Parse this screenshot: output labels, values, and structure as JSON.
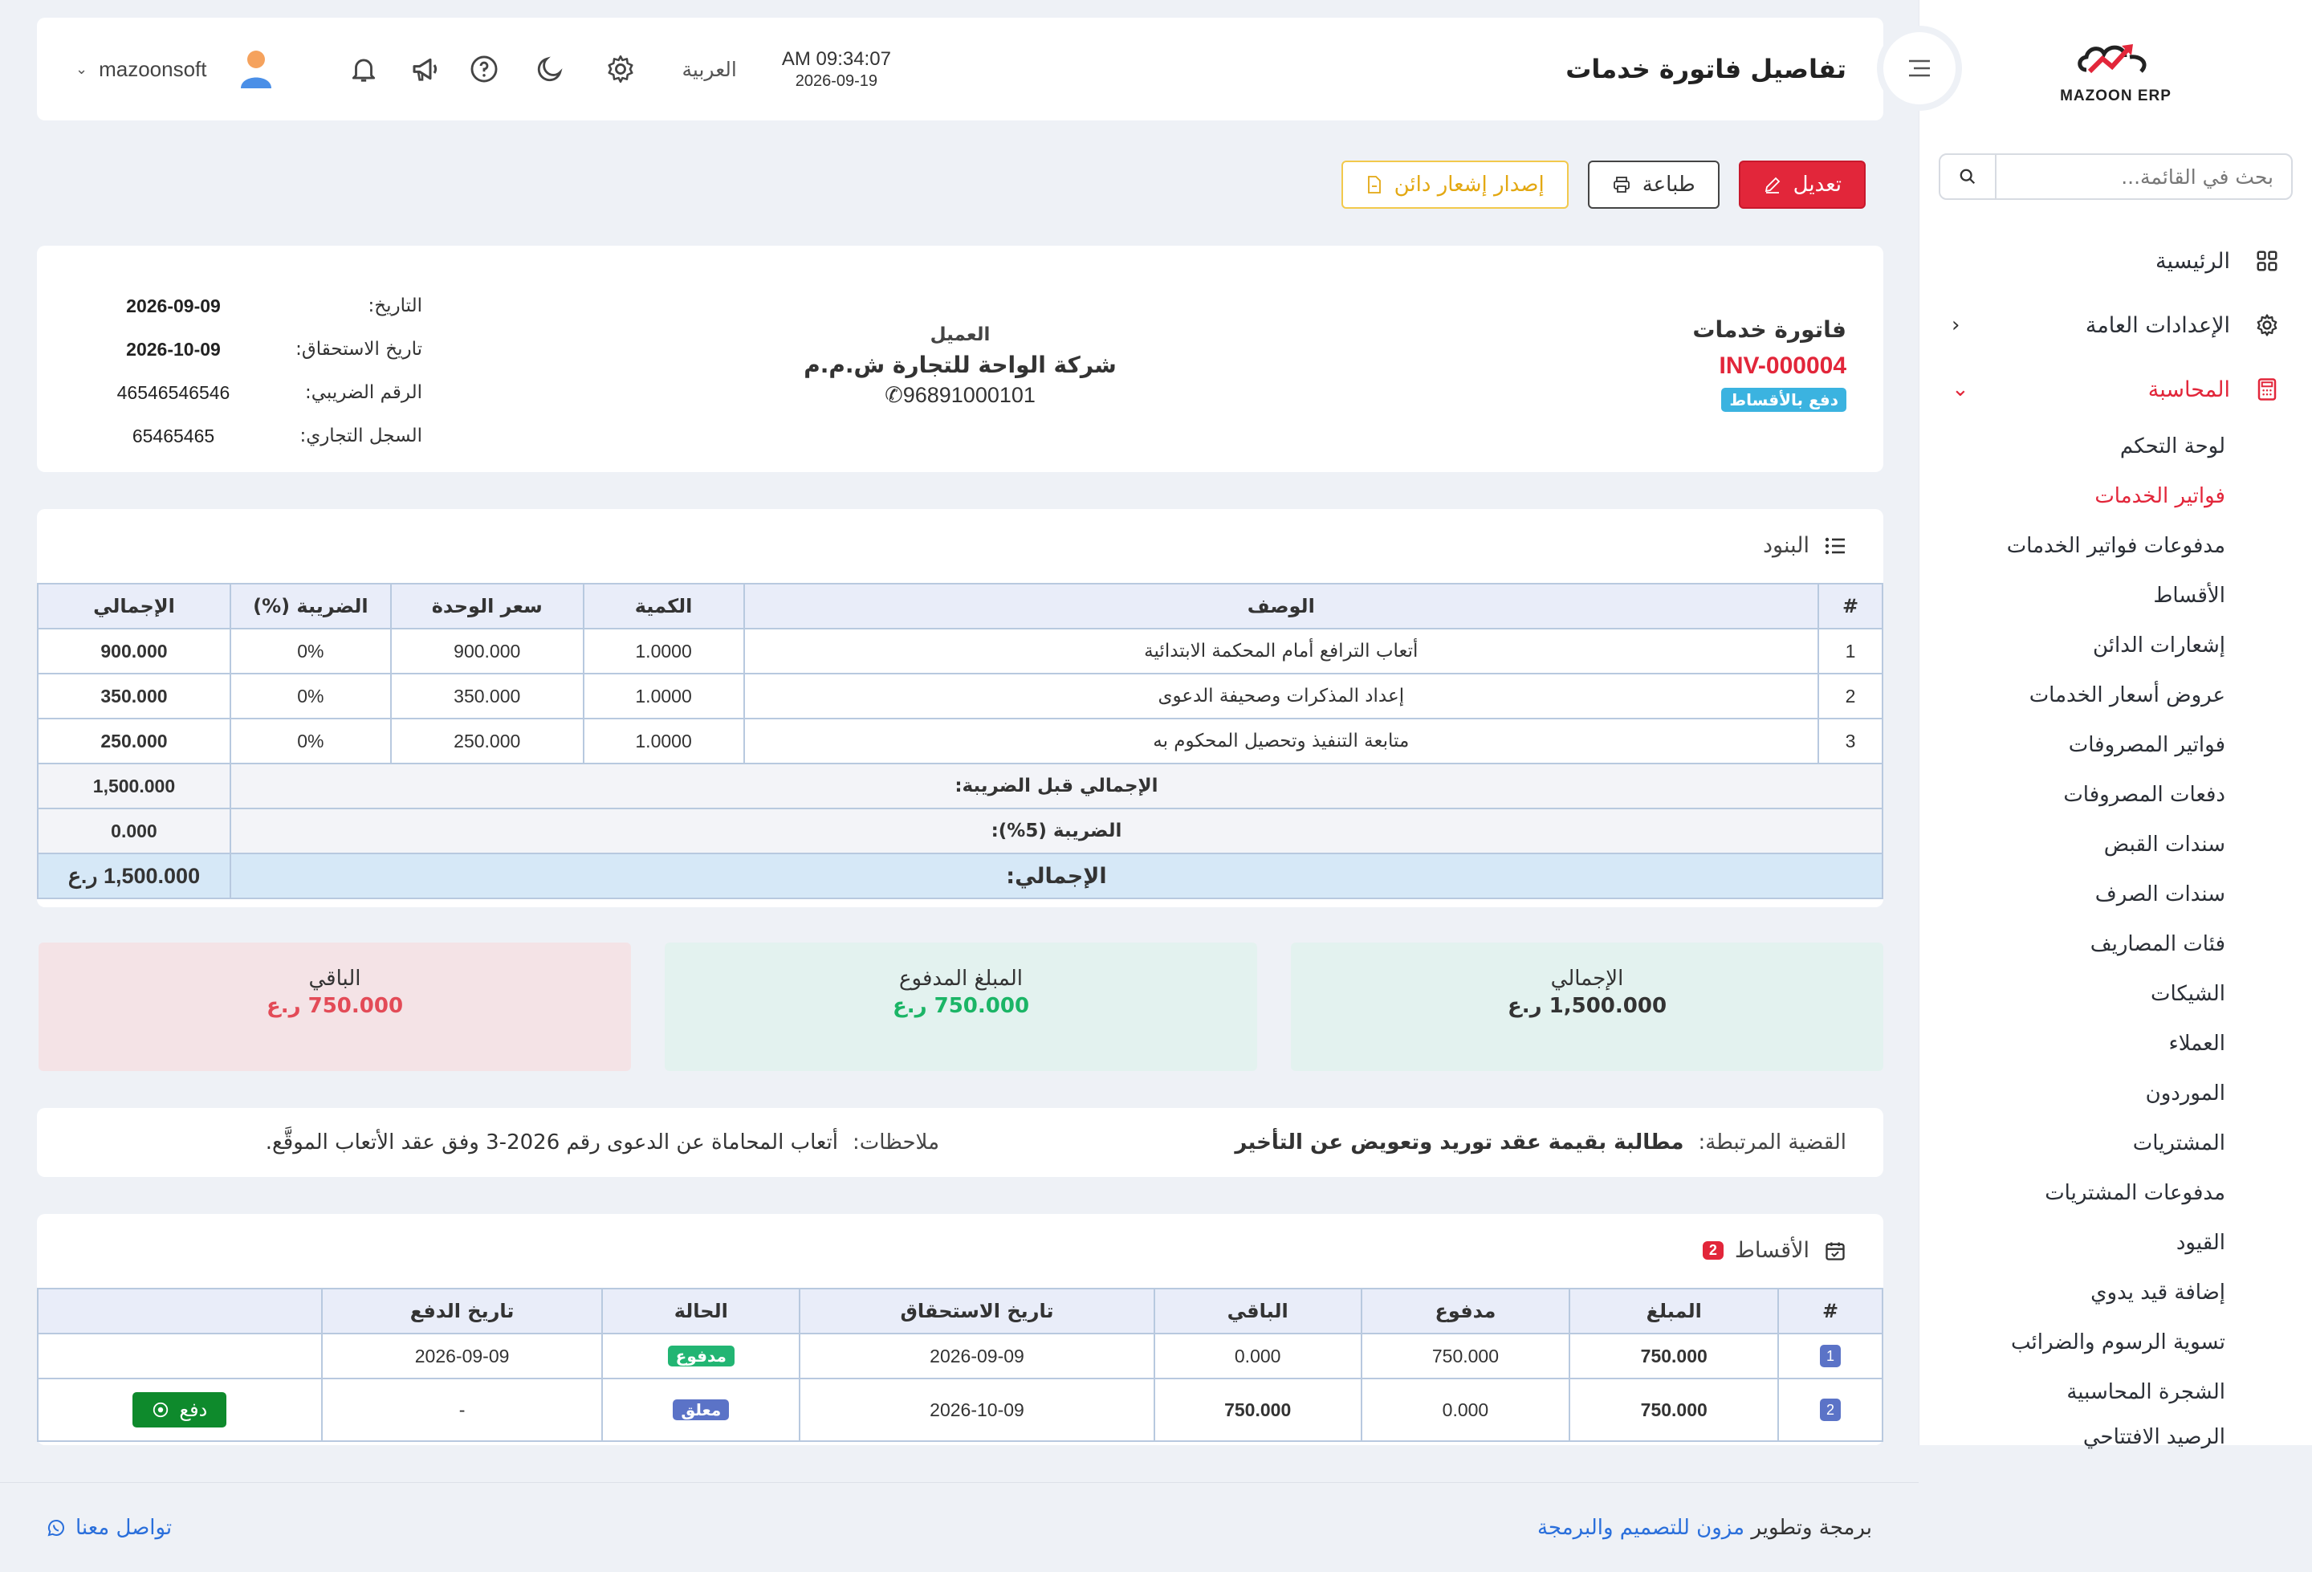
{
  "sidebar": {
    "logo_text": "MAZOON ERP",
    "search_placeholder": "بحث في القائمة...",
    "nav": [
      {
        "label": "الرئيسية",
        "icon": "grid-icon"
      },
      {
        "label": "الإعدادات العامة",
        "icon": "gear-icon"
      },
      {
        "label": "المحاسبة",
        "icon": "calculator-icon"
      }
    ],
    "sub_items": [
      "لوحة التحكم",
      "فواتير الخدمات",
      "مدفوعات فواتير الخدمات",
      "الأقساط",
      "إشعارات الدائن",
      "عروض أسعار الخدمات",
      "فواتير المصروفات",
      "دفعات المصروفات",
      "سندات القبض",
      "سندات الصرف",
      "فئات المصاريف",
      "الشيكات",
      "العملاء",
      "الموردون",
      "المشتريات",
      "مدفوعات المشتريات",
      "القيود",
      "إضافة قيد يدوي",
      "تسوية الرسوم والضرائب",
      "الشجرة المحاسبية",
      "الرصيد الافتتاحي"
    ]
  },
  "header": {
    "title": "تفاصيل فاتورة خدمات",
    "time": "AM 09:34:07",
    "date": "2026-09-19",
    "language": "العربية",
    "username": "mazoonsoft"
  },
  "actions": {
    "edit": "تعديل",
    "print": "طباعة",
    "credit_note": "إصدار إشعار دائن"
  },
  "invoice": {
    "type_title": "فاتورة خدمات",
    "number": "INV-000004",
    "payment_badge": "دفع بالأقساط",
    "client_label": "العميل",
    "client_name": "شركة الواحة للتجارة ش.م.م",
    "client_phone": "96891000101",
    "meta": [
      {
        "label": "التاريخ:",
        "value": "2026-09-09"
      },
      {
        "label": "تاريخ الاستحقاق:",
        "value": "2026-10-09"
      },
      {
        "label": "الرقم الضريبي:",
        "value": "46546546546"
      },
      {
        "label": "السجل التجاري:",
        "value": "65465465"
      }
    ]
  },
  "items": {
    "title": "البنود",
    "headers": [
      "#",
      "الوصف",
      "الكمية",
      "سعر الوحدة",
      "الضريبة (%)",
      "الإجمالي"
    ],
    "rows": [
      [
        "1",
        "أتعاب الترافع أمام المحكمة الابتدائية",
        "1.0000",
        "900.000",
        "0%",
        "900.000"
      ],
      [
        "2",
        "إعداد المذكرات وصحيفة الدعوى",
        "1.0000",
        "350.000",
        "0%",
        "350.000"
      ],
      [
        "3",
        "متابعة التنفيذ وتحصيل المحكوم به",
        "1.0000",
        "250.000",
        "0%",
        "250.000"
      ]
    ],
    "subtotal_label": "الإجمالي قبل الضريبة:",
    "subtotal_value": "1,500.000",
    "tax_label": "الضريبة (5%):",
    "tax_value": "0.000",
    "total_label": "الإجمالي:",
    "total_value": "1,500.000 ر.ع"
  },
  "summary": {
    "total_label": "الإجمالي",
    "total_value": "1,500.000 ر.ع",
    "paid_label": "المبلغ المدفوع",
    "paid_value": "750.000 ر.ع",
    "remaining_label": "الباقي",
    "remaining_value": "750.000 ر.ع"
  },
  "notes": {
    "case_label": "القضية المرتبطة:",
    "case_value": "مطالبة بقيمة عقد توريد وتعويض عن التأخير",
    "remarks_label": "ملاحظات:",
    "remarks_value": "أتعاب المحاماة عن الدعوى رقم 2026-3 وفق عقد الأتعاب الموقَّع."
  },
  "installments": {
    "title": "الأقساط",
    "count": "2",
    "headers": [
      "#",
      "المبلغ",
      "مدفوع",
      "الباقي",
      "تاريخ الاستحقاق",
      "الحالة",
      "تاريخ الدفع",
      ""
    ],
    "rows": [
      {
        "idx": "1",
        "amount": "750.000",
        "paid": "750.000",
        "remaining": "0.000",
        "due": "2026-09-09",
        "status": "مدفوع",
        "pay_date": "2026-09-09"
      },
      {
        "idx": "2",
        "amount": "750.000",
        "paid": "0.000",
        "remaining": "750.000",
        "due": "2026-10-09",
        "status": "معلق",
        "pay_date": "-",
        "action": "دفع"
      }
    ]
  },
  "footer": {
    "credit_prefix": "برمجة وتطوير",
    "credit_company": "مزون للتصميم والبرمجة",
    "contact": "تواصل معنا"
  },
  "colors": {
    "accent": "#e2263a",
    "paid_green": "#1bb566",
    "pending_blue": "#5b73c7",
    "link": "#2a6fdb"
  }
}
